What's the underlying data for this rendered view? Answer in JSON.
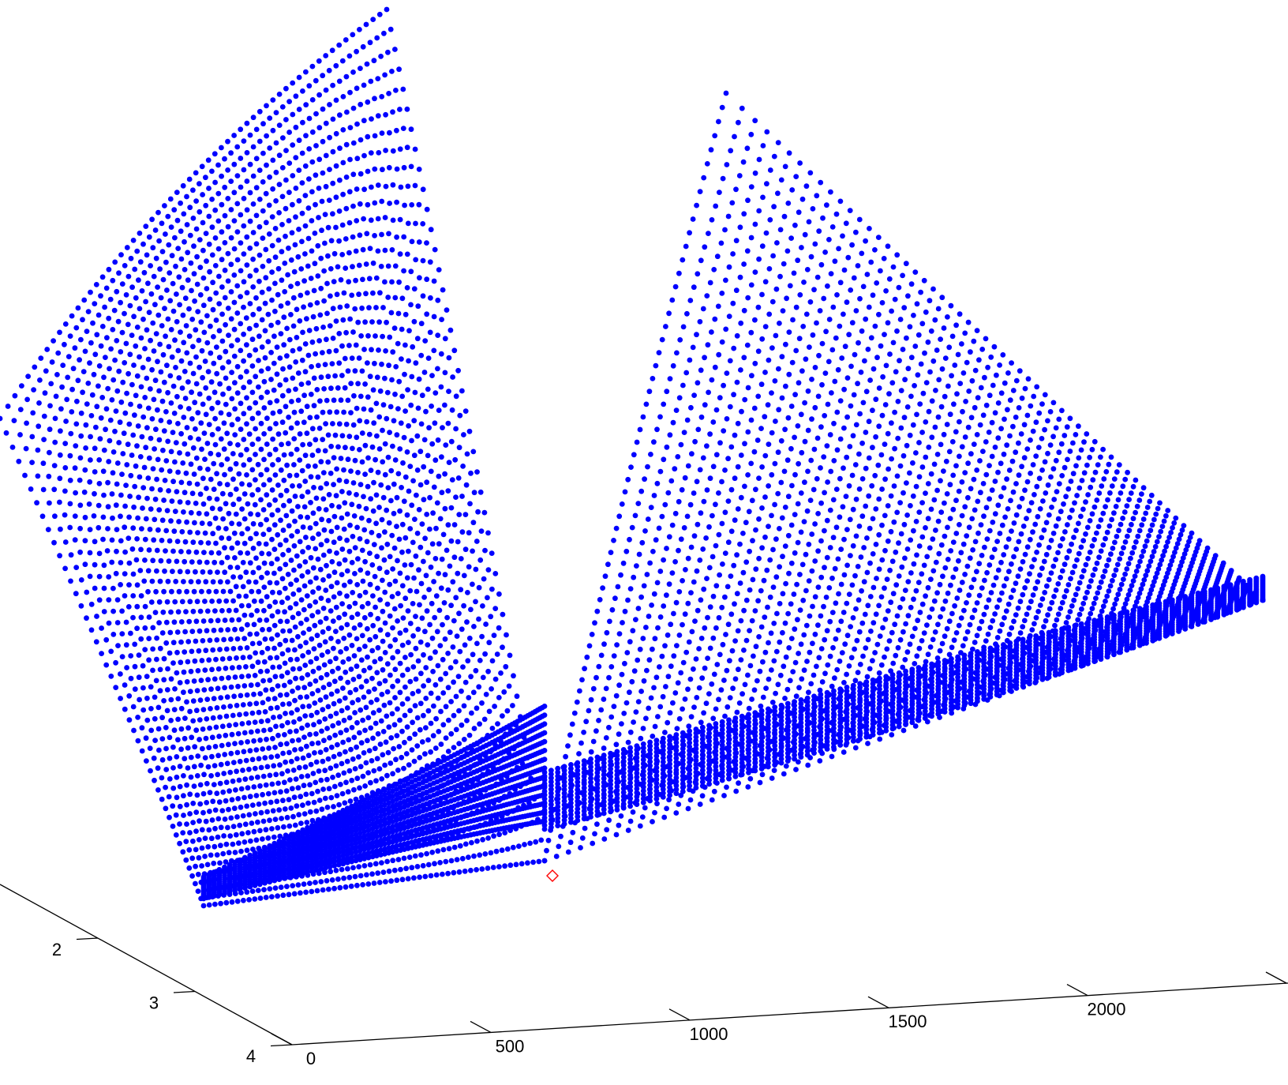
{
  "chart_data": {
    "type": "scatter",
    "title": "",
    "xlabel": "",
    "ylabel": "",
    "zlabel": "",
    "marker_color": "#0000ff",
    "highlight_color": "#ff0000",
    "highlight_marker": "diamond",
    "x_axis": {
      "ticks": [
        0,
        500,
        1000,
        1500,
        2000
      ],
      "labels": [
        "0",
        "500",
        "1000",
        "1500",
        "2000"
      ],
      "range": [
        0,
        2500
      ]
    },
    "y_axis": {
      "ticks": [
        2,
        3,
        4
      ],
      "labels": [
        "2",
        "3",
        "4"
      ],
      "range": [
        1,
        4
      ]
    },
    "grid": false,
    "legend": "none",
    "surface": {
      "description_shape": "double ridge",
      "n_x_samples": 60,
      "n_y_samples": 70
    }
  }
}
